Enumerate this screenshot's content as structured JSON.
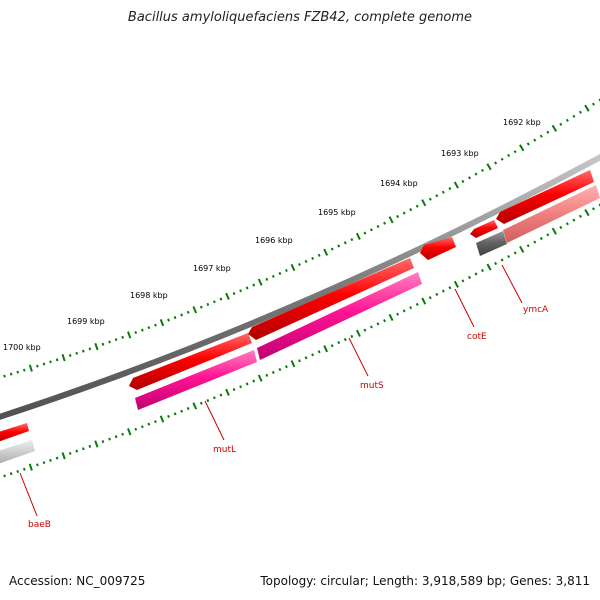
{
  "title": "Bacillus amyloliquefaciens FZB42, complete genome",
  "footer": {
    "accession": "Accession: NC_009725",
    "summary": "Topology: circular; Length: 3,918,589 bp; Genes: 3,811"
  },
  "ruler_labels": [
    "1700 kbp",
    "1699 kbp",
    "1698 kbp",
    "1697 kbp",
    "1696 kbp",
    "1695 kbp",
    "1694 kbp",
    "1693 kbp",
    "1692 kbp"
  ],
  "genes": [
    {
      "name": "baeB",
      "color": "#ff0000"
    },
    {
      "name": "mutL",
      "color": "#ff1493"
    },
    {
      "name": "mutS",
      "color": "#ff1493"
    },
    {
      "name": "cotE",
      "color": "#ff0000"
    },
    {
      "name": "ymcA",
      "color": "#ff0000"
    }
  ],
  "colors": {
    "tick": "#0a7a0a",
    "backbone": "#808080",
    "cds": "#ff0000",
    "mut": "#ff1493",
    "label": "#d00000"
  }
}
